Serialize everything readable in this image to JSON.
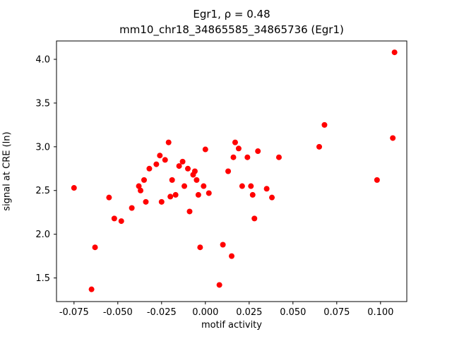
{
  "figure": {
    "title": "Egr1, ρ = 0.48",
    "subtitle": "mm10_chr18_34865585_34865736 (Egr1)"
  },
  "chart_data": {
    "type": "scatter",
    "title": "Egr1, ρ = 0.48",
    "subtitle": "mm10_chr18_34865585_34865736 (Egr1)",
    "xlabel": "motif activity",
    "ylabel": "signal at CRE (ln)",
    "xlim": [
      -0.085,
      0.115
    ],
    "ylim": [
      1.23,
      4.21
    ],
    "x_ticks": [
      -0.075,
      -0.05,
      -0.025,
      0.0,
      0.025,
      0.05,
      0.075,
      0.1
    ],
    "x_tick_labels": [
      "-0.075",
      "-0.050",
      "-0.025",
      "0.000",
      "0.025",
      "0.050",
      "0.075",
      "0.100"
    ],
    "y_ticks": [
      1.5,
      2.0,
      2.5,
      3.0,
      3.5,
      4.0
    ],
    "y_tick_labels": [
      "1.5",
      "2.0",
      "2.5",
      "3.0",
      "3.5",
      "4.0"
    ],
    "marker_color": "#ff0000",
    "marker_radius": 4,
    "grid": false,
    "legend": "none",
    "points": [
      [
        -0.075,
        2.53
      ],
      [
        -0.065,
        1.37
      ],
      [
        -0.063,
        1.85
      ],
      [
        -0.055,
        2.42
      ],
      [
        -0.052,
        2.18
      ],
      [
        -0.048,
        2.15
      ],
      [
        -0.042,
        2.3
      ],
      [
        -0.038,
        2.55
      ],
      [
        -0.037,
        2.5
      ],
      [
        -0.035,
        2.62
      ],
      [
        -0.034,
        2.37
      ],
      [
        -0.032,
        2.75
      ],
      [
        -0.028,
        2.8
      ],
      [
        -0.026,
        2.9
      ],
      [
        -0.025,
        2.37
      ],
      [
        -0.023,
        2.85
      ],
      [
        -0.021,
        3.05
      ],
      [
        -0.02,
        2.43
      ],
      [
        -0.019,
        2.62
      ],
      [
        -0.017,
        2.45
      ],
      [
        -0.015,
        2.78
      ],
      [
        -0.013,
        2.83
      ],
      [
        -0.012,
        2.55
      ],
      [
        -0.01,
        2.75
      ],
      [
        -0.009,
        2.26
      ],
      [
        -0.007,
        2.68
      ],
      [
        -0.006,
        2.72
      ],
      [
        -0.005,
        2.62
      ],
      [
        -0.004,
        2.45
      ],
      [
        -0.003,
        1.85
      ],
      [
        -0.001,
        2.55
      ],
      [
        0.0,
        2.97
      ],
      [
        0.002,
        2.47
      ],
      [
        0.008,
        1.42
      ],
      [
        0.01,
        1.88
      ],
      [
        0.013,
        2.72
      ],
      [
        0.015,
        1.75
      ],
      [
        0.016,
        2.88
      ],
      [
        0.017,
        3.05
      ],
      [
        0.019,
        2.98
      ],
      [
        0.021,
        2.55
      ],
      [
        0.024,
        2.88
      ],
      [
        0.026,
        2.55
      ],
      [
        0.027,
        2.45
      ],
      [
        0.028,
        2.18
      ],
      [
        0.03,
        2.95
      ],
      [
        0.035,
        2.52
      ],
      [
        0.038,
        2.42
      ],
      [
        0.042,
        2.88
      ],
      [
        0.065,
        3.0
      ],
      [
        0.068,
        3.25
      ],
      [
        0.098,
        2.62
      ],
      [
        0.107,
        3.1
      ],
      [
        0.108,
        4.08
      ]
    ]
  }
}
